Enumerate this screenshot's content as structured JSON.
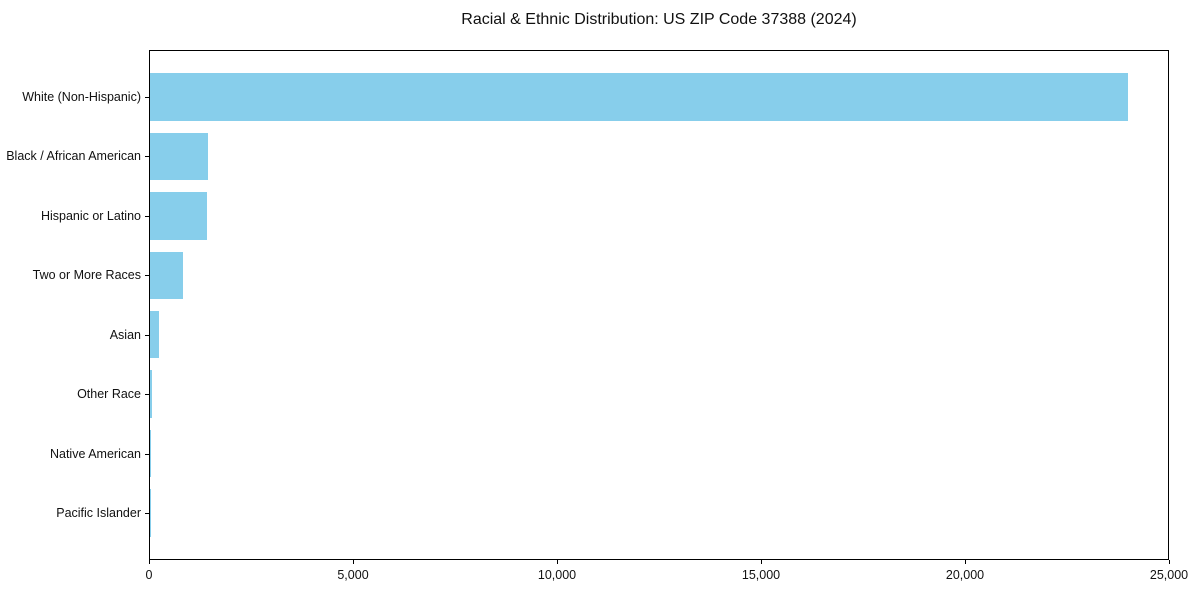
{
  "chart": {
    "bar_color": "#87CEEB",
    "frame_color": "#000000",
    "text_color": "#111111",
    "background_color": "#ffffff"
  },
  "chart_data": {
    "type": "bar",
    "orientation": "horizontal",
    "title": "Racial & Ethnic Distribution: US ZIP Code 37388 (2024)",
    "xlabel": "",
    "ylabel": "",
    "categories": [
      "White (Non-Hispanic)",
      "Black / African American",
      "Hispanic or Latino",
      "Two or More Races",
      "Asian",
      "Other Race",
      "Native American",
      "Pacific Islander"
    ],
    "values": [
      23970,
      1430,
      1400,
      800,
      230,
      40,
      15,
      5
    ],
    "xlim": [
      0,
      25000
    ],
    "x_ticks": [
      0,
      5000,
      10000,
      15000,
      20000,
      25000
    ],
    "x_tick_labels": [
      "0",
      "5,000",
      "10,000",
      "15,000",
      "20,000",
      "25,000"
    ],
    "grid": false,
    "legend": false,
    "bar_color": "#87CEEB"
  }
}
